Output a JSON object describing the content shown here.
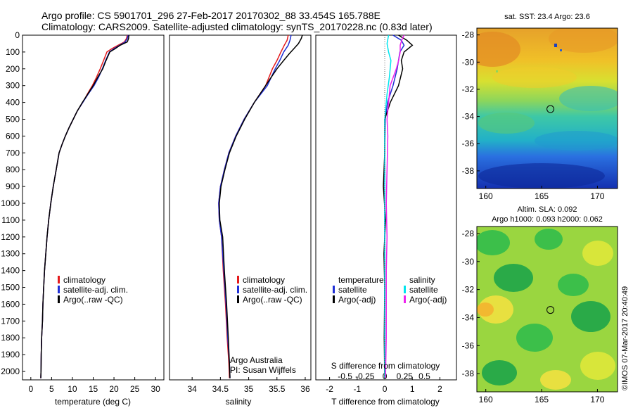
{
  "header": {
    "line1": "Argo profile: CS 5901701_296 27-Feb-2017 20170302_88 33.454S 165.788E",
    "line2": "Climatology: CARS2009. Satellite-adjusted climatology: synTS_20170228.nc (0.83d later)"
  },
  "colors": {
    "climatology": "#e41a1c",
    "satellite": "#1f2fd6",
    "argo": "#000000",
    "salinity_satellite": "#00e5ee",
    "salinity_argo": "#ee22ee"
  },
  "labels": {
    "attribution1": "Argo Australia",
    "attribution2": "PI: Susan Wijffels",
    "imos": "©IMOS 07-Mar-2017 20:40:49"
  },
  "chart_data": [
    {
      "id": "temperature",
      "type": "line",
      "xlabel": "temperature (deg C)",
      "ylabel": "",
      "xlim": [
        -2,
        32
      ],
      "ylim": [
        2050,
        0
      ],
      "xticks": [
        0,
        5,
        10,
        15,
        20,
        25,
        30
      ],
      "yticks": [
        0,
        100,
        200,
        300,
        400,
        500,
        600,
        700,
        800,
        900,
        1000,
        1100,
        1200,
        1300,
        1400,
        1500,
        1600,
        1700,
        1800,
        1900,
        2000
      ],
      "legend": [
        "climatology",
        "satellite-adj. clim.",
        "Argo(..raw -QC)"
      ],
      "legend_position": "lower-center",
      "series": [
        {
          "name": "climatology",
          "color_key": "climatology",
          "points": [
            [
              23.2,
              0
            ],
            [
              23.0,
              20
            ],
            [
              22.5,
              40
            ],
            [
              21.0,
              60
            ],
            [
              19.5,
              80
            ],
            [
              18.3,
              100
            ],
            [
              17.5,
              150
            ],
            [
              16.7,
              200
            ],
            [
              15.8,
              250
            ],
            [
              14.8,
              300
            ],
            [
              13.6,
              350
            ],
            [
              12.5,
              400
            ],
            [
              11.2,
              450
            ],
            [
              10.2,
              500
            ],
            [
              9.2,
              550
            ],
            [
              8.3,
              600
            ],
            [
              7.5,
              650
            ],
            [
              6.8,
              700
            ],
            [
              6.1,
              800
            ],
            [
              5.4,
              900
            ],
            [
              4.8,
              1000
            ],
            [
              4.3,
              1100
            ],
            [
              3.9,
              1200
            ],
            [
              3.6,
              1300
            ],
            [
              3.3,
              1400
            ],
            [
              3.1,
              1500
            ],
            [
              2.9,
              1600
            ],
            [
              2.8,
              1700
            ],
            [
              2.6,
              1800
            ],
            [
              2.5,
              1900
            ],
            [
              2.45,
              2000
            ],
            [
              2.4,
              2040
            ]
          ]
        },
        {
          "name": "satellite-adj. clim.",
          "color_key": "satellite",
          "points": [
            [
              23.4,
              0
            ],
            [
              23.2,
              20
            ],
            [
              22.7,
              40
            ],
            [
              21.4,
              60
            ],
            [
              20.0,
              80
            ],
            [
              18.9,
              100
            ],
            [
              18.0,
              150
            ],
            [
              17.2,
              200
            ],
            [
              16.3,
              250
            ],
            [
              15.2,
              300
            ],
            [
              13.8,
              350
            ],
            [
              12.5,
              400
            ],
            [
              11.2,
              450
            ],
            [
              10.2,
              500
            ],
            [
              9.2,
              550
            ],
            [
              8.3,
              600
            ],
            [
              7.5,
              650
            ],
            [
              6.8,
              700
            ],
            [
              6.1,
              800
            ],
            [
              5.4,
              900
            ],
            [
              4.8,
              1000
            ],
            [
              4.3,
              1100
            ],
            [
              3.9,
              1200
            ],
            [
              3.6,
              1300
            ],
            [
              3.3,
              1400
            ],
            [
              3.1,
              1500
            ],
            [
              2.9,
              1600
            ],
            [
              2.8,
              1700
            ],
            [
              2.6,
              1800
            ],
            [
              2.5,
              1900
            ],
            [
              2.45,
              2000
            ],
            [
              2.4,
              2040
            ]
          ]
        },
        {
          "name": "Argo(..raw -QC)",
          "color_key": "argo",
          "points": [
            [
              23.6,
              0
            ],
            [
              23.5,
              20
            ],
            [
              23.2,
              40
            ],
            [
              21.5,
              60
            ],
            [
              20.3,
              80
            ],
            [
              19.0,
              100
            ],
            [
              18.1,
              150
            ],
            [
              17.3,
              200
            ],
            [
              16.1,
              250
            ],
            [
              15.0,
              300
            ],
            [
              13.7,
              350
            ],
            [
              12.4,
              400
            ],
            [
              11.2,
              450
            ],
            [
              10.2,
              500
            ],
            [
              9.2,
              550
            ],
            [
              8.3,
              600
            ],
            [
              7.5,
              650
            ],
            [
              6.8,
              700
            ],
            [
              6.1,
              800
            ],
            [
              5.4,
              900
            ],
            [
              4.8,
              1000
            ],
            [
              4.3,
              1100
            ],
            [
              3.9,
              1200
            ],
            [
              3.6,
              1300
            ],
            [
              3.3,
              1400
            ],
            [
              3.1,
              1500
            ],
            [
              2.9,
              1600
            ],
            [
              2.8,
              1700
            ],
            [
              2.6,
              1800
            ],
            [
              2.5,
              1900
            ],
            [
              2.45,
              2000
            ],
            [
              2.4,
              2040
            ]
          ]
        }
      ]
    },
    {
      "id": "salinity",
      "type": "line",
      "xlabel": "salinity",
      "ylabel": "",
      "xlim": [
        33.6,
        36.1
      ],
      "ylim": [
        2050,
        0
      ],
      "xticks": [
        34,
        34.5,
        35,
        35.5,
        36
      ],
      "legend": [
        "climatology",
        "satellite-adj. clim.",
        "Argo(..raw -QC)"
      ],
      "legend_position": "lower-center",
      "series": [
        {
          "name": "climatology",
          "color_key": "climatology",
          "points": [
            [
              35.7,
              0
            ],
            [
              35.68,
              30
            ],
            [
              35.63,
              60
            ],
            [
              35.57,
              100
            ],
            [
              35.5,
              150
            ],
            [
              35.42,
              200
            ],
            [
              35.3,
              300
            ],
            [
              35.1,
              400
            ],
            [
              34.92,
              500
            ],
            [
              34.77,
              600
            ],
            [
              34.65,
              700
            ],
            [
              34.57,
              800
            ],
            [
              34.5,
              900
            ],
            [
              34.47,
              1000
            ],
            [
              34.48,
              1100
            ],
            [
              34.52,
              1200
            ],
            [
              34.55,
              1400
            ],
            [
              34.59,
              1600
            ],
            [
              34.62,
              1800
            ],
            [
              34.65,
              1950
            ],
            [
              34.66,
              2040
            ]
          ]
        },
        {
          "name": "satellite-adj. clim.",
          "color_key": "satellite",
          "points": [
            [
              35.75,
              0
            ],
            [
              35.73,
              30
            ],
            [
              35.7,
              60
            ],
            [
              35.62,
              100
            ],
            [
              35.55,
              150
            ],
            [
              35.47,
              200
            ],
            [
              35.33,
              300
            ],
            [
              35.1,
              400
            ],
            [
              34.92,
              500
            ],
            [
              34.77,
              600
            ],
            [
              34.65,
              700
            ],
            [
              34.57,
              800
            ],
            [
              34.5,
              900
            ],
            [
              34.47,
              1000
            ],
            [
              34.48,
              1100
            ],
            [
              34.52,
              1200
            ],
            [
              34.56,
              1400
            ],
            [
              34.6,
              1600
            ],
            [
              34.63,
              1800
            ],
            [
              34.66,
              1950
            ],
            [
              34.67,
              2040
            ]
          ]
        },
        {
          "name": "Argo(..raw -QC)",
          "color_key": "argo",
          "points": [
            [
              35.95,
              0
            ],
            [
              35.93,
              20
            ],
            [
              35.88,
              50
            ],
            [
              35.8,
              80
            ],
            [
              35.72,
              110
            ],
            [
              35.62,
              150
            ],
            [
              35.5,
              200
            ],
            [
              35.38,
              260
            ],
            [
              35.3,
              300
            ],
            [
              35.1,
              400
            ],
            [
              34.93,
              500
            ],
            [
              34.78,
              600
            ],
            [
              34.66,
              700
            ],
            [
              34.58,
              800
            ],
            [
              34.51,
              900
            ],
            [
              34.48,
              1000
            ],
            [
              34.49,
              1100
            ],
            [
              34.54,
              1200
            ],
            [
              34.57,
              1400
            ],
            [
              34.61,
              1600
            ],
            [
              34.64,
              1800
            ],
            [
              34.66,
              1950
            ],
            [
              34.67,
              2040
            ]
          ]
        }
      ]
    },
    {
      "id": "difference",
      "type": "line",
      "xlabel": "T difference from climatology",
      "xlabel_top": "S difference from climatology",
      "xlim": [
        -2.5,
        2.6
      ],
      "ylim": [
        2050,
        0
      ],
      "xticks": [
        -2,
        -1,
        0,
        1,
        2
      ],
      "xticks_top": [
        -0.5,
        -0.25,
        0,
        0.25,
        0.5
      ],
      "legend_t_title": "temperature",
      "legend_s_title": "salinity",
      "legend_t": [
        "satellite",
        "Argo(-adj)"
      ],
      "legend_s": [
        "satellite",
        "Argo(-adj)"
      ],
      "series": [
        {
          "name": "T satellite",
          "color_key": "satellite",
          "points": [
            [
              0.3,
              0
            ],
            [
              0.6,
              30
            ],
            [
              0.7,
              60
            ],
            [
              0.55,
              100
            ],
            [
              0.5,
              150
            ],
            [
              0.45,
              200
            ],
            [
              0.3,
              300
            ],
            [
              0.1,
              400
            ],
            [
              0.02,
              500
            ],
            [
              0,
              700
            ],
            [
              0,
              2040
            ]
          ]
        },
        {
          "name": "T Argo(-adj)",
          "color_key": "argo",
          "points": [
            [
              0.5,
              0
            ],
            [
              0.8,
              30
            ],
            [
              1.0,
              60
            ],
            [
              0.7,
              100
            ],
            [
              0.6,
              150
            ],
            [
              0.65,
              200
            ],
            [
              0.5,
              300
            ],
            [
              0.2,
              400
            ],
            [
              0.1,
              450
            ],
            [
              0,
              500
            ],
            [
              0,
              700
            ],
            [
              -0.05,
              900
            ],
            [
              0.03,
              1100
            ],
            [
              -0.03,
              1300
            ],
            [
              0,
              1500
            ],
            [
              -0.02,
              1800
            ],
            [
              0,
              2040
            ]
          ]
        },
        {
          "name": "S satellite",
          "color_key": "salinity_satellite",
          "points": [
            [
              0.05,
              0
            ],
            [
              0.03,
              50
            ],
            [
              0.05,
              100
            ],
            [
              0.08,
              150
            ],
            [
              0.06,
              250
            ],
            [
              0.03,
              350
            ],
            [
              0.01,
              450
            ],
            [
              0,
              500
            ],
            [
              0,
              2040
            ]
          ]
        },
        {
          "name": "S Argo(-adj)",
          "color_key": "salinity_argo",
          "points": [
            [
              0.25,
              0
            ],
            [
              0.22,
              30
            ],
            [
              0.2,
              60
            ],
            [
              0.2,
              100
            ],
            [
              0.18,
              150
            ],
            [
              0.15,
              200
            ],
            [
              0.07,
              300
            ],
            [
              0.05,
              400
            ],
            [
              0.03,
              500
            ],
            [
              0.04,
              600
            ],
            [
              0.03,
              800
            ],
            [
              0.02,
              1000
            ],
            [
              0.03,
              1200
            ],
            [
              0.02,
              1400
            ],
            [
              0.02,
              1600
            ],
            [
              0.02,
              1800
            ],
            [
              0.01,
              2040
            ]
          ]
        }
      ]
    },
    {
      "id": "sst_map",
      "type": "heatmap",
      "title": "sat. SST: 23.4  Argo: 23.6",
      "xlim": [
        159.2,
        171.8
      ],
      "ylim": [
        -39.3,
        -27.5
      ],
      "xticks": [
        160,
        165,
        170
      ],
      "yticks": [
        -28,
        -30,
        -32,
        -34,
        -36,
        -38
      ],
      "marker": [
        165.788,
        -33.454
      ]
    },
    {
      "id": "sla_map",
      "type": "heatmap",
      "title": "Altim. SLA: 0.092",
      "subtitle": "Argo h1000: 0.093 h2000: 0.062",
      "xlim": [
        159.2,
        171.8
      ],
      "ylim": [
        -39.3,
        -27.5
      ],
      "xticks": [
        160,
        165,
        170
      ],
      "yticks": [
        -28,
        -30,
        -32,
        -34,
        -36,
        -38
      ],
      "marker": [
        165.788,
        -33.454
      ]
    }
  ]
}
